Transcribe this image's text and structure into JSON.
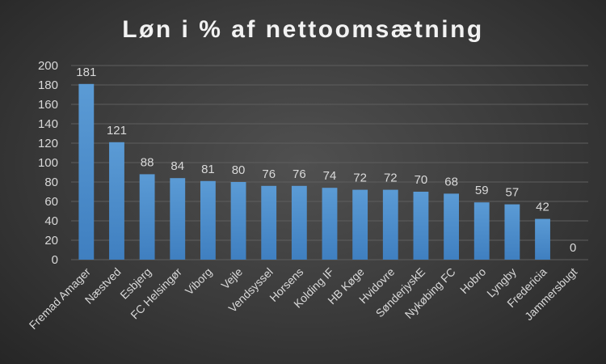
{
  "chart_data": {
    "type": "bar",
    "title": "Løn i % af nettoomsætning",
    "xlabel": "",
    "ylabel": "",
    "categories": [
      "Fremad Amager",
      "Næstved",
      "Esbjerg",
      "FC Helsingør",
      "Viborg",
      "Vejle",
      "Vendsyssel",
      "Horsens",
      "Kolding IF",
      "HB Køge",
      "Hvidovre",
      "SønderjyskE",
      "Nykøbing FC",
      "Hobro",
      "Lyngby",
      "Fredericia",
      "Jammersbugt"
    ],
    "values": [
      181,
      121,
      88,
      84,
      81,
      80,
      76,
      76,
      74,
      72,
      72,
      70,
      68,
      59,
      57,
      42,
      0
    ],
    "ylim": [
      0,
      200
    ],
    "yticks": [
      0,
      20,
      40,
      60,
      80,
      100,
      120,
      140,
      160,
      180,
      200
    ],
    "grid": true,
    "legend": "none",
    "bar_color": "#5b9bd5",
    "bar_color_dark": "#3f7fc0"
  }
}
